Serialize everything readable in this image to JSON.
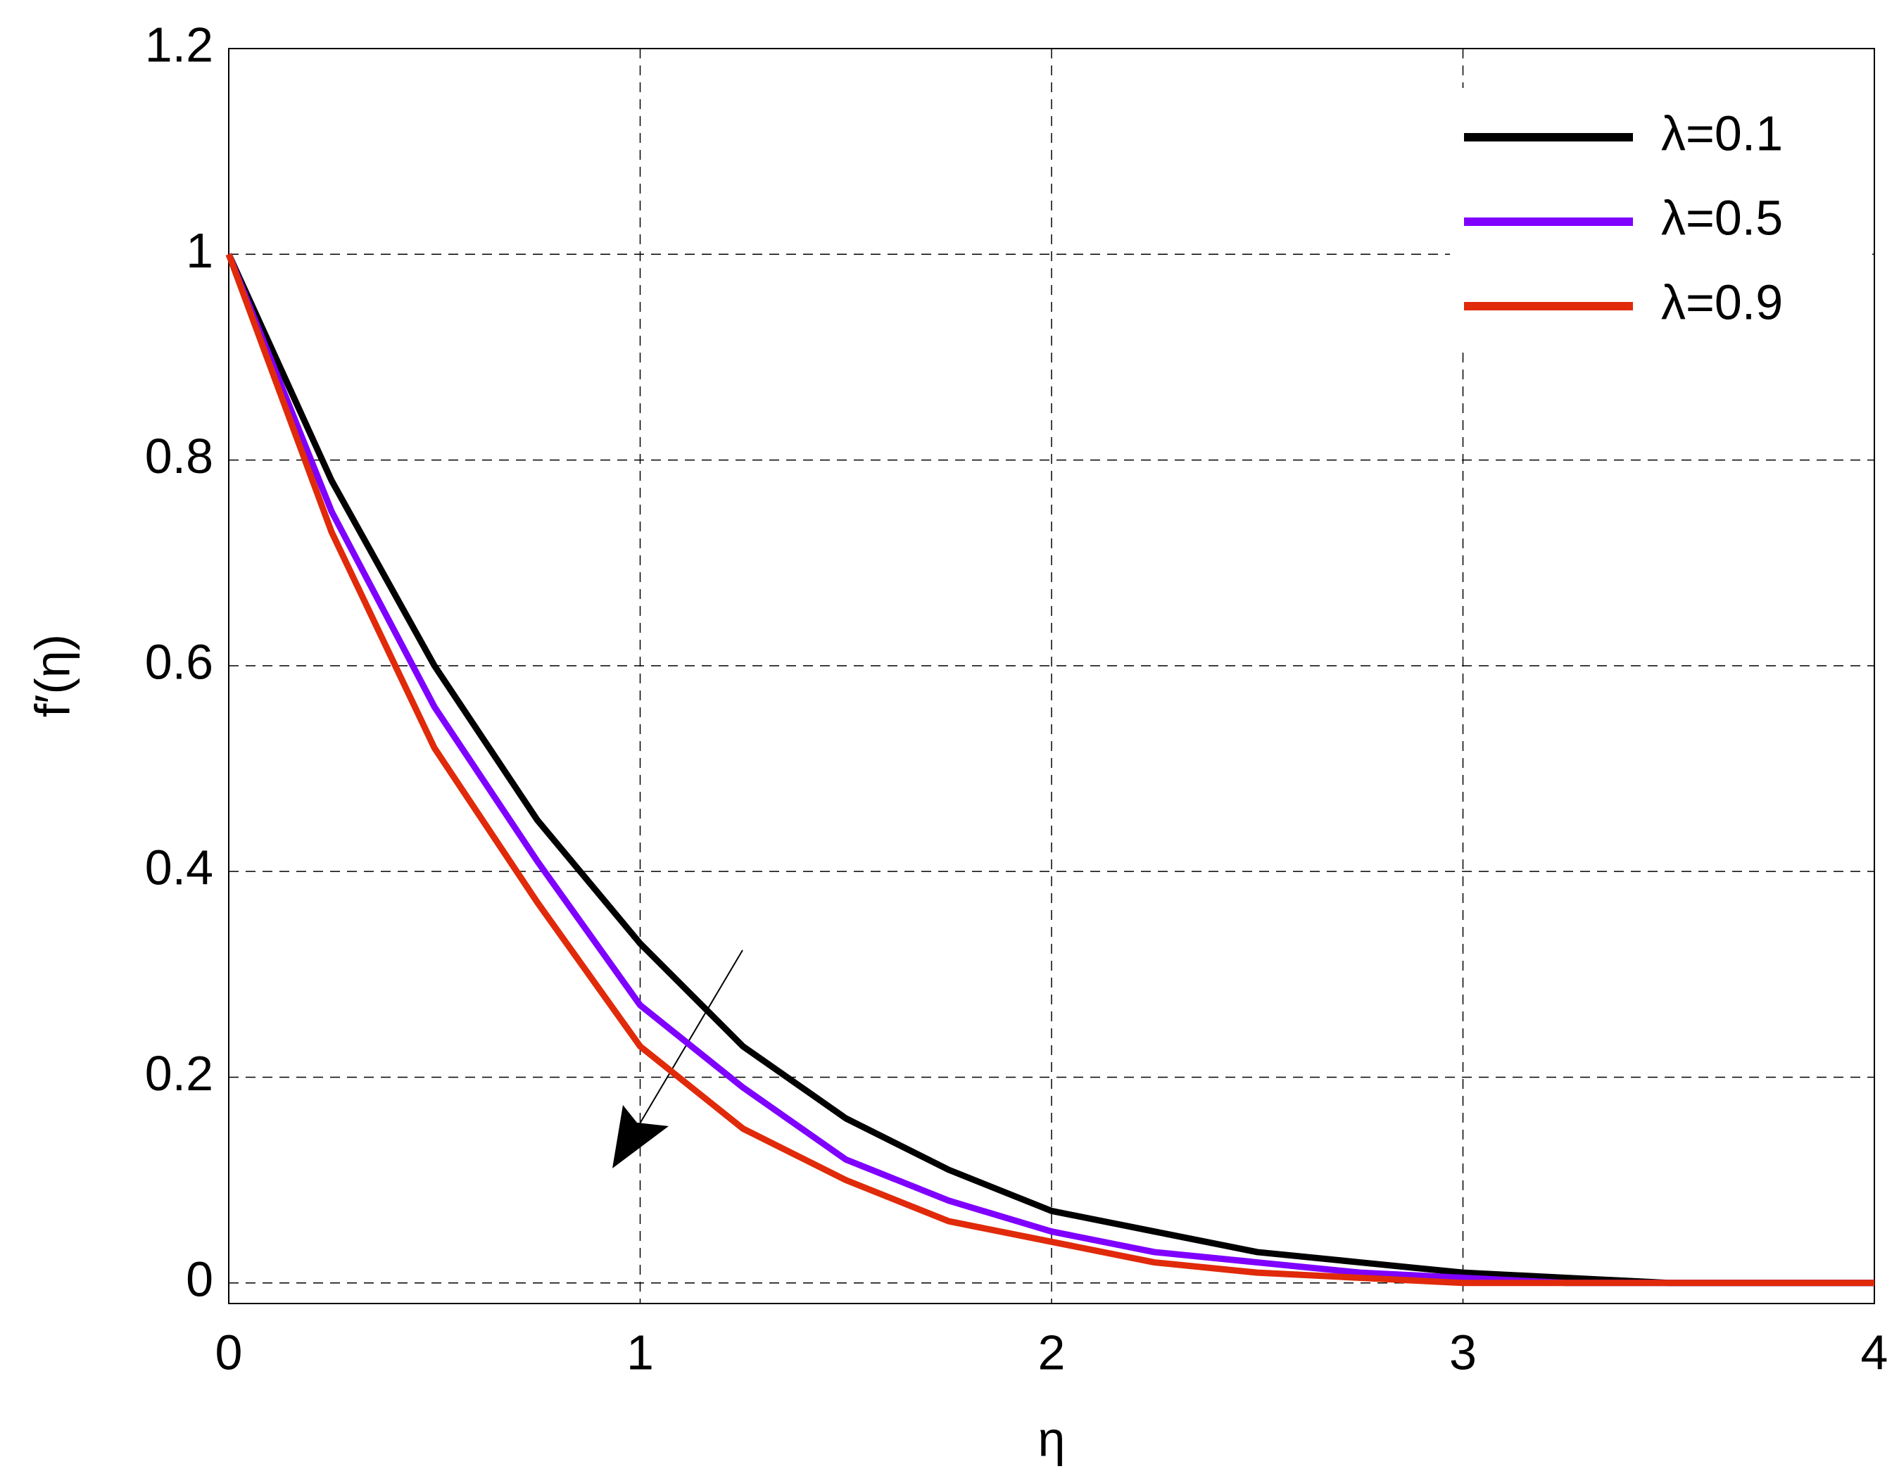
{
  "chart_data": {
    "type": "line",
    "x_label": "η",
    "y_label": "f′(η)",
    "x": [
      0,
      0.25,
      0.5,
      0.75,
      1,
      1.25,
      1.5,
      1.75,
      2,
      2.25,
      2.5,
      2.75,
      3,
      3.25,
      3.5,
      3.75,
      4
    ],
    "series": [
      {
        "name": "λ=0.1",
        "color": "#000000",
        "values": [
          1,
          0.78,
          0.6,
          0.45,
          0.33,
          0.23,
          0.16,
          0.11,
          0.07,
          0.05,
          0.03,
          0.02,
          0.01,
          0.005,
          0,
          0,
          0
        ]
      },
      {
        "name": "λ=0.5",
        "color": "#7f00ff",
        "values": [
          1,
          0.75,
          0.56,
          0.41,
          0.27,
          0.19,
          0.12,
          0.08,
          0.05,
          0.03,
          0.02,
          0.01,
          0.005,
          0,
          0,
          0,
          0
        ]
      },
      {
        "name": "λ=0.9",
        "color": "#e02a0a",
        "values": [
          1,
          0.73,
          0.52,
          0.37,
          0.23,
          0.15,
          0.1,
          0.06,
          0.04,
          0.02,
          0.01,
          0.005,
          0,
          0,
          0,
          0,
          0
        ]
      }
    ],
    "xlim": [
      0,
      4
    ],
    "ylim": [
      -0.02,
      1.2
    ],
    "xticks": [
      0,
      1,
      2,
      3,
      4
    ],
    "yticks": [
      0,
      0.2,
      0.4,
      0.6,
      0.8,
      1,
      1.2
    ],
    "grid": true,
    "legend": "upper right"
  }
}
